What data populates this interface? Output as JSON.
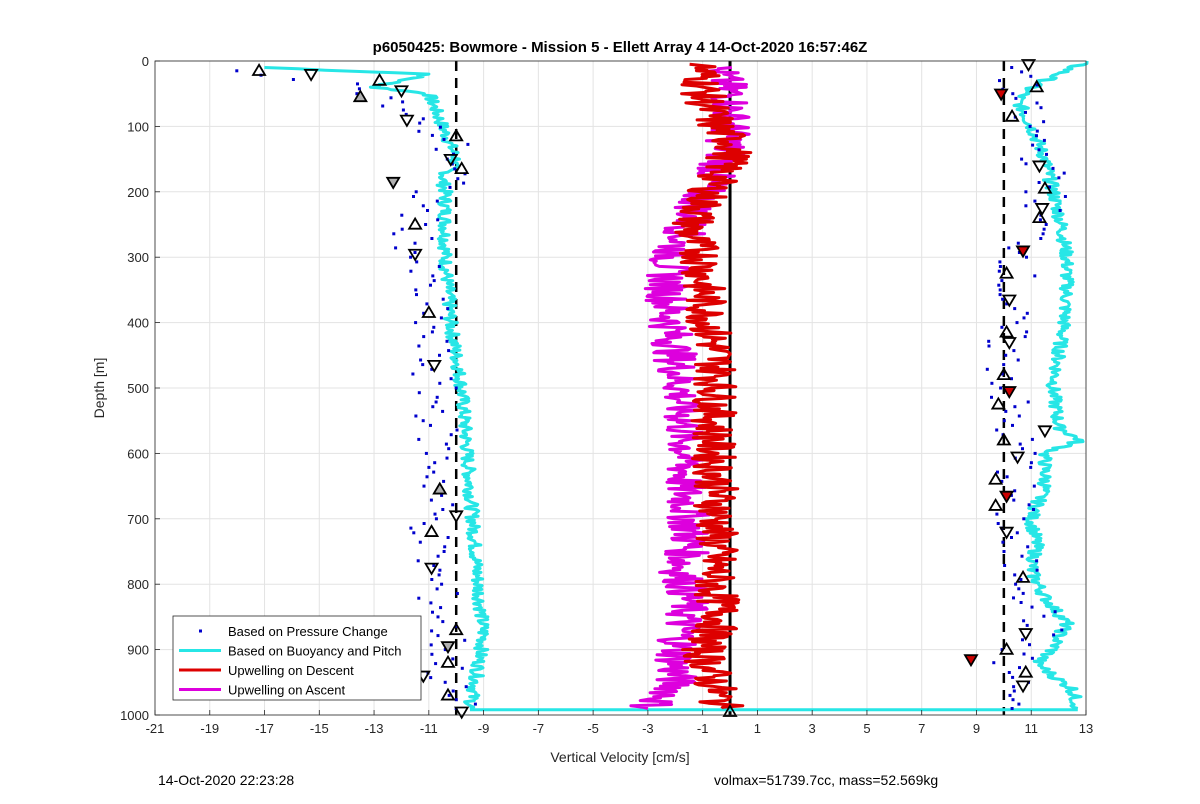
{
  "footer": {
    "left": "14-Oct-2020 22:23:28",
    "right": "volmax=51739.7cc, mass=52.569kg"
  },
  "chart_data": {
    "type": "scatter",
    "title": "p6050425: Bowmore - Mission 5 - Ellett Array 4 14-Oct-2020 16:57:46Z",
    "xlabel": "Vertical Velocity [cm/s]",
    "ylabel": "Depth [m]",
    "xlim": [
      -21,
      13
    ],
    "ylim": [
      0,
      1000
    ],
    "y_reversed": true,
    "grid": true,
    "legend_position": "bottom-left",
    "xticks": [
      -21,
      -19,
      -17,
      -15,
      -13,
      -11,
      -9,
      -7,
      -5,
      -3,
      -1,
      1,
      3,
      5,
      7,
      9,
      11,
      13
    ],
    "yticks": [
      0,
      100,
      200,
      300,
      400,
      500,
      600,
      700,
      800,
      900,
      1000
    ],
    "reference_lines": [
      {
        "x": -10,
        "style": "dashed",
        "color": "#000000"
      },
      {
        "x": 10,
        "style": "dashed",
        "color": "#000000"
      },
      {
        "x": 0,
        "style": "solid",
        "color": "#000000"
      }
    ],
    "series": [
      {
        "name": "Based on Pressure Change",
        "style": "points",
        "color": "#0000cc",
        "descent": [
          [
            -17.5,
            15
          ],
          [
            -14,
            35
          ],
          [
            -13,
            50
          ],
          [
            -12,
            75
          ],
          [
            -11.5,
            95
          ],
          [
            -10.3,
            120
          ],
          [
            -10,
            150
          ],
          [
            -10.2,
            180
          ],
          [
            -11,
            200
          ],
          [
            -11.5,
            250
          ],
          [
            -11.5,
            300
          ],
          [
            -11.2,
            350
          ],
          [
            -11,
            400
          ],
          [
            -11,
            450
          ],
          [
            -10.8,
            500
          ],
          [
            -10.7,
            550
          ],
          [
            -10.7,
            600
          ],
          [
            -10.6,
            650
          ],
          [
            -10.9,
            700
          ],
          [
            -11,
            750
          ],
          [
            -10.8,
            800
          ],
          [
            -10.5,
            850
          ],
          [
            -10.3,
            900
          ],
          [
            -10.4,
            950
          ],
          [
            -10,
            990
          ]
        ],
        "ascent": [
          [
            10.3,
            990
          ],
          [
            10.4,
            950
          ],
          [
            10.2,
            920
          ],
          [
            10.6,
            900
          ],
          [
            11.4,
            870
          ],
          [
            11,
            800
          ],
          [
            10.2,
            750
          ],
          [
            10.3,
            700
          ],
          [
            10.4,
            650
          ],
          [
            10.6,
            600
          ],
          [
            10.1,
            550
          ],
          [
            10.2,
            500
          ],
          [
            10,
            450
          ],
          [
            10.1,
            400
          ],
          [
            10.2,
            350
          ],
          [
            10.7,
            300
          ],
          [
            11.2,
            250
          ],
          [
            11.6,
            200
          ],
          [
            11.4,
            150
          ],
          [
            11,
            100
          ],
          [
            10.3,
            50
          ],
          [
            10.8,
            10
          ]
        ]
      },
      {
        "name": "Based on Buoyancy and Pitch",
        "style": "line",
        "color": "#27e6e6",
        "descent": [
          [
            -17,
            10
          ],
          [
            -11,
            20
          ],
          [
            -13,
            40
          ],
          [
            -11,
            50
          ],
          [
            -10.5,
            100
          ],
          [
            -10,
            150
          ],
          [
            -10.5,
            180
          ],
          [
            -10.4,
            200
          ],
          [
            -10.4,
            300
          ],
          [
            -10.2,
            400
          ],
          [
            -9.8,
            500
          ],
          [
            -9.6,
            600
          ],
          [
            -9.4,
            700
          ],
          [
            -9.2,
            800
          ],
          [
            -9,
            880
          ],
          [
            -9.3,
            950
          ],
          [
            -9.5,
            990
          ]
        ],
        "ascent": [
          [
            12.7,
            990
          ],
          [
            12.5,
            960
          ],
          [
            11.8,
            940
          ],
          [
            11.2,
            920
          ],
          [
            11.8,
            900
          ],
          [
            12,
            880
          ],
          [
            12.3,
            860
          ],
          [
            11.5,
            820
          ],
          [
            11,
            780
          ],
          [
            11.2,
            740
          ],
          [
            11,
            700
          ],
          [
            11.5,
            650
          ],
          [
            11.5,
            600
          ],
          [
            12.8,
            580
          ],
          [
            12,
            560
          ],
          [
            11.8,
            500
          ],
          [
            12,
            450
          ],
          [
            12.2,
            400
          ],
          [
            12.3,
            350
          ],
          [
            12.3,
            300
          ],
          [
            12.1,
            250
          ],
          [
            11.8,
            200
          ],
          [
            11.5,
            150
          ],
          [
            11,
            100
          ],
          [
            10.5,
            60
          ],
          [
            11,
            40
          ],
          [
            12,
            20
          ],
          [
            13,
            0
          ]
        ]
      },
      {
        "name": "Upwelling on Descent",
        "style": "line",
        "color": "#dd0000",
        "values": [
          [
            -1,
            5
          ],
          [
            -1,
            50
          ],
          [
            -0.5,
            100
          ],
          [
            0.2,
            130
          ],
          [
            -0.5,
            180
          ],
          [
            -1,
            220
          ],
          [
            -1.5,
            260
          ],
          [
            -1,
            300
          ],
          [
            -1,
            340
          ],
          [
            -0.8,
            400
          ],
          [
            -0.5,
            450
          ],
          [
            -0.5,
            500
          ],
          [
            -0.6,
            550
          ],
          [
            -0.6,
            600
          ],
          [
            -0.5,
            650
          ],
          [
            -0.5,
            700
          ],
          [
            -0.5,
            750
          ],
          [
            -0.6,
            800
          ],
          [
            -0.3,
            850
          ],
          [
            -1,
            900
          ],
          [
            -0.6,
            950
          ],
          [
            -0.3,
            990
          ]
        ]
      },
      {
        "name": "Upwelling on Ascent",
        "style": "line",
        "color": "#dd00dd",
        "values": [
          [
            -3,
            990
          ],
          [
            -2,
            960
          ],
          [
            -2,
            920
          ],
          [
            -1.8,
            880
          ],
          [
            -1.5,
            820
          ],
          [
            -1.8,
            780
          ],
          [
            -1.5,
            740
          ],
          [
            -1.5,
            700
          ],
          [
            -1.7,
            650
          ],
          [
            -1.6,
            600
          ],
          [
            -1.7,
            550
          ],
          [
            -1.8,
            500
          ],
          [
            -2,
            450
          ],
          [
            -2.2,
            400
          ],
          [
            -2.3,
            350
          ],
          [
            -2.2,
            300
          ],
          [
            -1.5,
            250
          ],
          [
            -1,
            200
          ],
          [
            -0.2,
            150
          ],
          [
            0,
            100
          ],
          [
            0,
            50
          ],
          [
            -0.5,
            10
          ]
        ]
      }
    ],
    "markers": {
      "descent": [
        [
          -17.2,
          15
        ],
        [
          -15.3,
          20
        ],
        [
          -12.8,
          30
        ],
        [
          -12,
          45
        ],
        [
          -13.5,
          55
        ],
        [
          -11.8,
          90
        ],
        [
          -10,
          115
        ],
        [
          -10.2,
          150
        ],
        [
          -9.8,
          165
        ],
        [
          -12.3,
          185
        ],
        [
          -11.5,
          250
        ],
        [
          -11.5,
          295
        ],
        [
          -11,
          385
        ],
        [
          -10.8,
          465
        ],
        [
          -10.6,
          655
        ],
        [
          -10,
          695
        ],
        [
          -10.9,
          720
        ],
        [
          -10.9,
          775
        ],
        [
          -10,
          870
        ],
        [
          -10.3,
          895
        ],
        [
          -10.3,
          920
        ],
        [
          -11.2,
          940
        ],
        [
          -10.3,
          970
        ],
        [
          -9.8,
          995
        ]
      ],
      "ascent": [
        [
          10.9,
          5
        ],
        [
          11.2,
          40
        ],
        [
          9.9,
          50
        ],
        [
          10.3,
          85
        ],
        [
          11.3,
          160
        ],
        [
          11.5,
          195
        ],
        [
          11.4,
          225
        ],
        [
          11.3,
          240
        ],
        [
          10.7,
          290
        ],
        [
          10.1,
          325
        ],
        [
          10.2,
          365
        ],
        [
          10.1,
          415
        ],
        [
          10.2,
          430
        ],
        [
          10,
          480
        ],
        [
          10.2,
          505
        ],
        [
          9.8,
          525
        ],
        [
          11.5,
          565
        ],
        [
          10,
          580
        ],
        [
          10.5,
          605
        ],
        [
          9.7,
          640
        ],
        [
          10.1,
          665
        ],
        [
          9.7,
          680
        ],
        [
          10.1,
          720
        ],
        [
          10.7,
          790
        ],
        [
          10.8,
          875
        ],
        [
          10.1,
          900
        ],
        [
          8.8,
          915
        ],
        [
          10.8,
          935
        ],
        [
          10.7,
          955
        ],
        [
          0,
          995
        ]
      ]
    }
  }
}
